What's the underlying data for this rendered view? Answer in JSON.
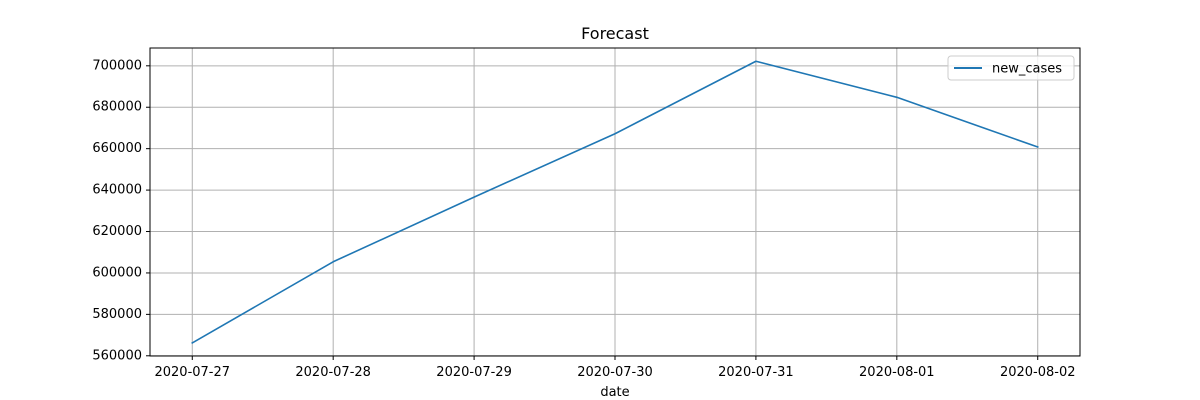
{
  "chart_data": {
    "type": "line",
    "title": "Forecast",
    "xlabel": "date",
    "ylabel": "",
    "x": [
      "2020-07-27",
      "2020-07-28",
      "2020-07-29",
      "2020-07-30",
      "2020-07-31",
      "2020-08-01",
      "2020-08-02"
    ],
    "series": [
      {
        "name": "new_cases",
        "color": "#1f77b4",
        "values": [
          566200,
          605400,
          636600,
          667200,
          702200,
          684800,
          660800
        ]
      }
    ],
    "xticks": [
      "2020-07-27",
      "2020-07-28",
      "2020-07-29",
      "2020-07-30",
      "2020-07-31",
      "2020-08-01",
      "2020-08-02"
    ],
    "yticks": [
      560000,
      580000,
      600000,
      620000,
      640000,
      660000,
      680000,
      700000
    ],
    "ytick_labels": [
      "560000",
      "580000",
      "600000",
      "620000",
      "640000",
      "660000",
      "680000",
      "700000"
    ],
    "xlim": [
      "2020-07-26.7",
      "2020-08-02.3"
    ],
    "ylim": [
      559900,
      708600
    ],
    "grid": true,
    "legend_position": "upper right",
    "colors": {
      "grid": "#b0b0b0",
      "axes": "#000000",
      "text": "#000000",
      "legend_border": "#cccccc"
    }
  }
}
